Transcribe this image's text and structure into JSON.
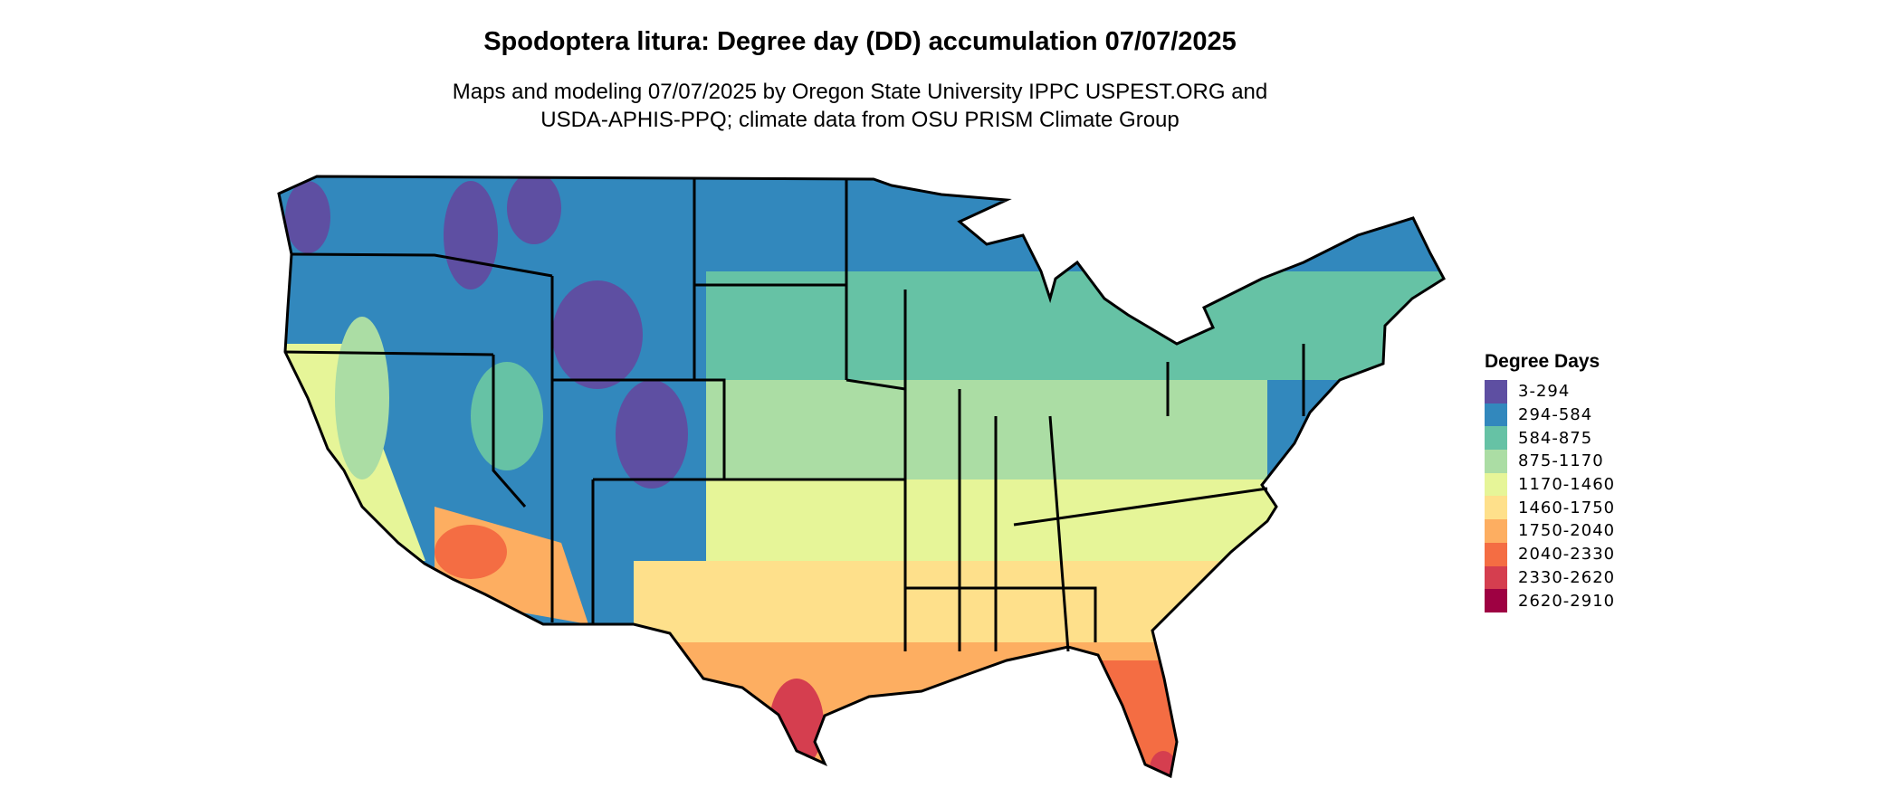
{
  "title": "Spodoptera litura: Degree day (DD) accumulation 07/07/2025",
  "subtitle_line1": "Maps and modeling 07/07/2025 by Oregon State University IPPC USPEST.ORG and",
  "subtitle_line2": "USDA-APHIS-PPQ; climate data from OSU PRISM Climate Group",
  "legend": {
    "title": "Degree Days",
    "items": [
      {
        "label": "3-294",
        "color": "#5E4FA2"
      },
      {
        "label": "294-584",
        "color": "#3288BD"
      },
      {
        "label": "584-875",
        "color": "#66C2A5"
      },
      {
        "label": "875-1170",
        "color": "#ABDDA4"
      },
      {
        "label": "1170-1460",
        "color": "#E6F598"
      },
      {
        "label": "1460-1750",
        "color": "#FEE08B"
      },
      {
        "label": "1750-2040",
        "color": "#FDAE61"
      },
      {
        "label": "2040-2330",
        "color": "#F46D43"
      },
      {
        "label": "2330-2620",
        "color": "#D53E4F"
      },
      {
        "label": "2620-2910",
        "color": "#9E0142"
      }
    ]
  }
}
